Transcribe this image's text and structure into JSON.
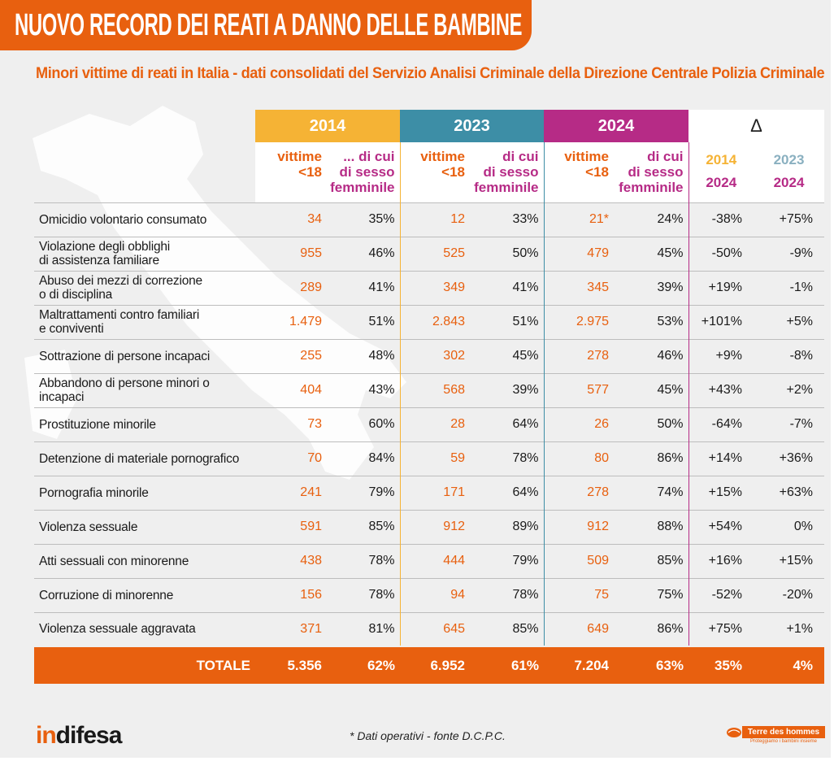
{
  "title": "NUOVO RECORD DEI REATI A DANNO DELLE BAMBINE",
  "subtitle": "Minori vittime di reati in Italia - dati consolidati del Servizio Analisi Criminale della Direzione Centrale Polizia Criminale",
  "colors": {
    "orange": "#e8600f",
    "y2014": "#f5b335",
    "y2023": "#3d8ea6",
    "y2024": "#b62b86"
  },
  "chart_data": {
    "type": "table",
    "title": "Minori vittime di reati in Italia - dati consolidati del Servizio Analisi Criminale della Direzione Centrale Polizia Criminale",
    "years": [
      "2014",
      "2023",
      "2024"
    ],
    "delta_symbol": "Δ",
    "delta_headers": [
      {
        "top": "2014",
        "bottom": "2024"
      },
      {
        "top": "2023",
        "bottom": "2024"
      }
    ],
    "subheaders": {
      "y2014": {
        "victims": [
          "vittime",
          "<18"
        ],
        "female": [
          "... di cui",
          "di sesso",
          "femminile"
        ]
      },
      "y2023": {
        "victims": [
          "vittime",
          "<18"
        ],
        "female": [
          "di cui",
          "di sesso",
          "femminile"
        ]
      },
      "y2024": {
        "victims": [
          "vittime",
          "<18"
        ],
        "female": [
          "di cui",
          "di sesso",
          "femminile"
        ]
      }
    },
    "rows": [
      {
        "crime": [
          "Omicidio volontario consumato"
        ],
        "v2014": "34",
        "f2014": "35%",
        "v2023": "12",
        "f2023": "33%",
        "v2024": "21*",
        "f2024": "24%",
        "d14_24": "-38%",
        "d23_24": "+75%"
      },
      {
        "crime": [
          "Violazione degli obblighi",
          "di assistenza familiare"
        ],
        "v2014": "955",
        "f2014": "46%",
        "v2023": "525",
        "f2023": "50%",
        "v2024": "479",
        "f2024": "45%",
        "d14_24": "-50%",
        "d23_24": "-9%"
      },
      {
        "crime": [
          "Abuso dei mezzi di correzione",
          "o di disciplina"
        ],
        "v2014": "289",
        "f2014": "41%",
        "v2023": "349",
        "f2023": "41%",
        "v2024": "345",
        "f2024": "39%",
        "d14_24": "+19%",
        "d23_24": "-1%"
      },
      {
        "crime": [
          "Maltrattamenti contro familiari",
          "e conviventi"
        ],
        "v2014": "1.479",
        "f2014": "51%",
        "v2023": "2.843",
        "f2023": "51%",
        "v2024": "2.975",
        "f2024": "53%",
        "d14_24": "+101%",
        "d23_24": "+5%"
      },
      {
        "crime": [
          "Sottrazione di persone incapaci"
        ],
        "v2014": "255",
        "f2014": "48%",
        "v2023": "302",
        "f2023": "45%",
        "v2024": "278",
        "f2024": "46%",
        "d14_24": "+9%",
        "d23_24": "-8%"
      },
      {
        "crime": [
          "Abbandono di persone minori o incapaci"
        ],
        "v2014": "404",
        "f2014": "43%",
        "v2023": "568",
        "f2023": "39%",
        "v2024": "577",
        "f2024": "45%",
        "d14_24": "+43%",
        "d23_24": "+2%"
      },
      {
        "crime": [
          "Prostituzione minorile"
        ],
        "v2014": "73",
        "f2014": "60%",
        "v2023": "28",
        "f2023": "64%",
        "v2024": "26",
        "f2024": "50%",
        "d14_24": "-64%",
        "d23_24": "-7%"
      },
      {
        "crime": [
          "Detenzione di materiale pornografico"
        ],
        "v2014": "70",
        "f2014": "84%",
        "v2023": "59",
        "f2023": "78%",
        "v2024": "80",
        "f2024": "86%",
        "d14_24": "+14%",
        "d23_24": "+36%"
      },
      {
        "crime": [
          "Pornografia minorile"
        ],
        "v2014": "241",
        "f2014": "79%",
        "v2023": "171",
        "f2023": "64%",
        "v2024": "278",
        "f2024": "74%",
        "d14_24": "+15%",
        "d23_24": "+63%"
      },
      {
        "crime": [
          "Violenza sessuale"
        ],
        "v2014": "591",
        "f2014": "85%",
        "v2023": "912",
        "f2023": "89%",
        "v2024": "912",
        "f2024": "88%",
        "d14_24": "+54%",
        "d23_24": "0%"
      },
      {
        "crime": [
          "Atti sessuali con minorenne"
        ],
        "v2014": "438",
        "f2014": "78%",
        "v2023": "444",
        "f2023": "79%",
        "v2024": "509",
        "f2024": "85%",
        "d14_24": "+16%",
        "d23_24": "+15%"
      },
      {
        "crime": [
          "Corruzione di minorenne"
        ],
        "v2014": "156",
        "f2014": "78%",
        "v2023": "94",
        "f2023": "78%",
        "v2024": "75",
        "f2024": "75%",
        "d14_24": "-52%",
        "d23_24": "-20%"
      },
      {
        "crime": [
          "Violenza sessuale aggravata"
        ],
        "v2014": "371",
        "f2014": "81%",
        "v2023": "645",
        "f2023": "85%",
        "v2024": "649",
        "f2024": "86%",
        "d14_24": "+75%",
        "d23_24": "+1%"
      }
    ],
    "total": {
      "label": "TOTALE",
      "v2014": "5.356",
      "f2014": "62%",
      "v2023": "6.952",
      "f2023": "61%",
      "v2024": "7.204",
      "f2024": "63%",
      "d14_24": "35%",
      "d23_24": "4%"
    }
  },
  "footer": {
    "note": "* Dati operativi - fonte D.C.P.C.",
    "logo_left": {
      "a": "in",
      "b": "difes",
      "c": "a"
    },
    "logo_right": {
      "name": "Terre des hommes",
      "tagline": "Proteggiamo i bambini insieme"
    }
  }
}
